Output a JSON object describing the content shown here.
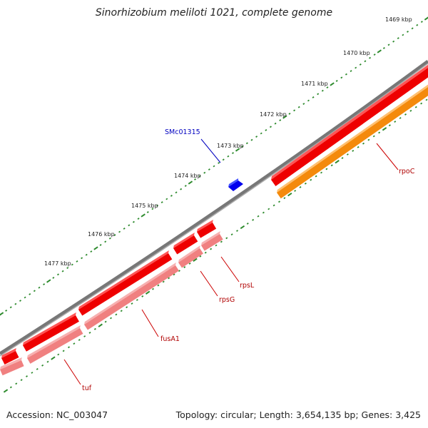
{
  "header": {
    "title": "Sinorhizobium meliloti 1021, complete genome"
  },
  "footer": {
    "accession": "Accession: NC_003047",
    "summary": "Topology: circular; Length: 3,654,135 bp; Genes: 3,425"
  },
  "colors": {
    "backbone": "#7a7a7a",
    "gene_forward": "#ee0000",
    "gene_reverse_light": "#f08080",
    "gene_reverse_orange": "#f48a0c",
    "gene_small_blue": "#0000ee",
    "ticks": "#2e8b2e",
    "gene_label": "#b00000",
    "small_gene_label": "#0000c0"
  },
  "map": {
    "ticks": [
      "1469 kbp",
      "1470 kbp",
      "1471 kbp",
      "1472 kbp",
      "1473 kbp",
      "1474 kbp",
      "1475 kbp",
      "1476 kbp",
      "1477 kbp"
    ],
    "genes": {
      "forward": [
        "rpoC",
        "rpsL",
        "rpsG",
        "fusA1",
        "tuf"
      ],
      "reverse": [
        "rpoC",
        "rpsL",
        "rpsG",
        "fusA1",
        "tuf"
      ],
      "small": [
        "SMc01315"
      ]
    },
    "gene_labels": [
      "SMc01315",
      "rpoC",
      "rpsL",
      "rpsG",
      "fusA1",
      "tuf"
    ]
  }
}
